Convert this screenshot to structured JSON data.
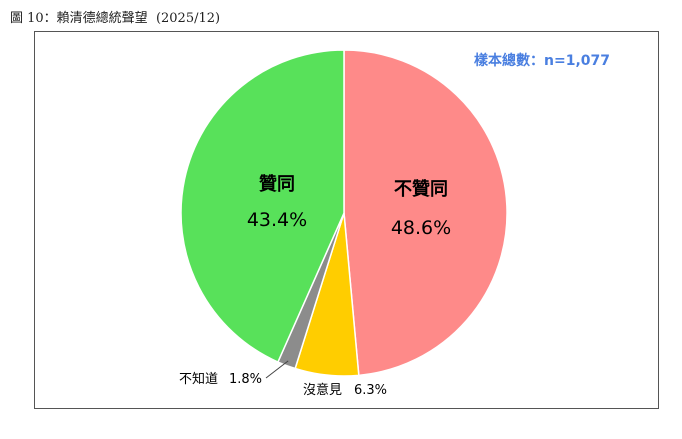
{
  "figure": {
    "caption": "圖 10：賴清德總統聲望  (2025/12)",
    "sample_note": "樣本總數：n=1,077"
  },
  "colors": {
    "disapprove": "#fe8a89",
    "approve": "#58e15a",
    "no_opinion": "#ffcd00",
    "dont_know": "#8c8c8c",
    "note": "#4a7fe0"
  },
  "chart_data": {
    "type": "pie",
    "start_angle_deg": 0,
    "direction": "clockwise",
    "slices": [
      {
        "key": "disapprove",
        "label": "不贊同",
        "value": 48.6,
        "value_label": "48.6%",
        "color": "#fe8a89"
      },
      {
        "key": "no_opinion",
        "label": "沒意見",
        "value": 6.3,
        "value_label": "6.3%",
        "color": "#ffcd00"
      },
      {
        "key": "dont_know",
        "label": "不知道",
        "value": 1.8,
        "value_label": "1.8%",
        "color": "#8c8c8c"
      },
      {
        "key": "approve",
        "label": "贊同",
        "value": 43.4,
        "value_label": "43.4%",
        "color": "#58e15a"
      }
    ]
  }
}
